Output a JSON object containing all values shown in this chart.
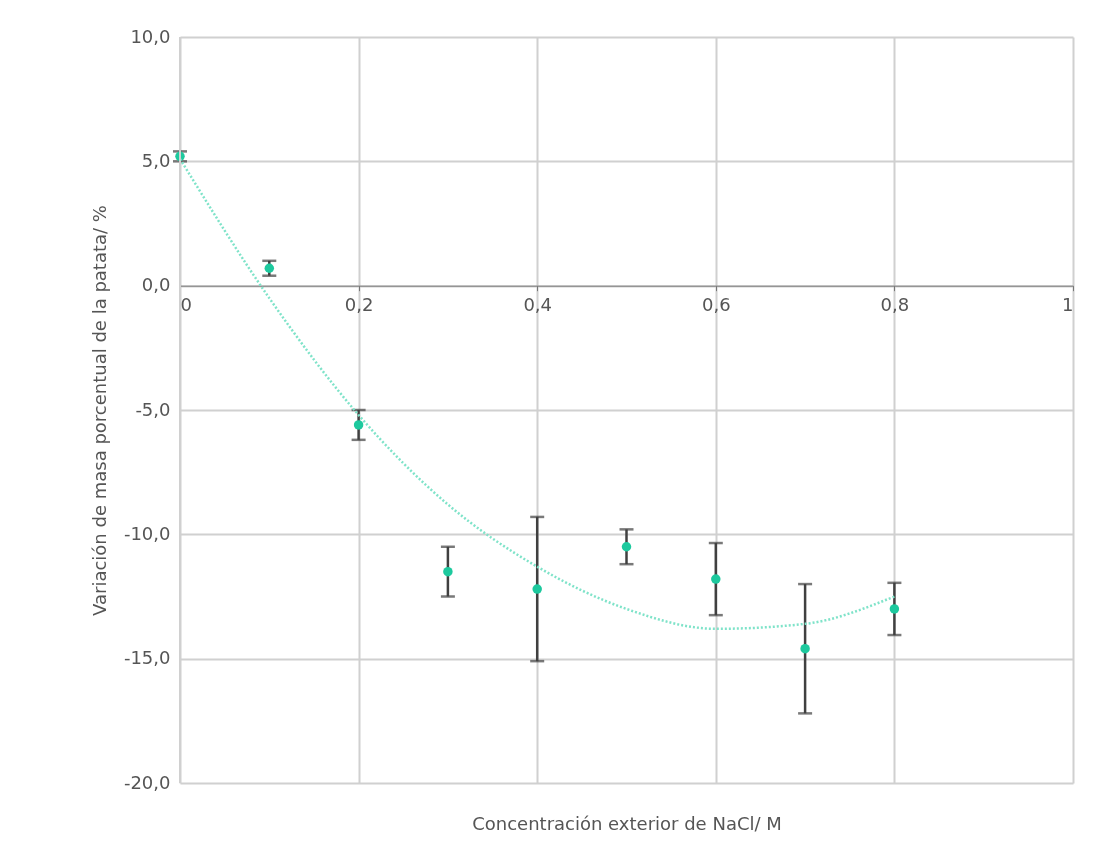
{
  "chart_data": {
    "type": "scatter",
    "xlabel": "Concentración exterior de NaCl/ M",
    "ylabel": "Variación de masa porcentual de la patata/ %",
    "xlim": [
      0,
      1
    ],
    "xticks": [
      0,
      {
        "value": 0.2,
        "label": "0,2"
      },
      {
        "value": 0.4,
        "label": "0,4"
      },
      {
        "value": 0.6,
        "label": "0,6"
      },
      {
        "value": 0.8,
        "label": "0,8"
      },
      1
    ],
    "ylim": [
      -20,
      10
    ],
    "yticks": [
      {
        "value": -20,
        "label": "-20,0"
      },
      {
        "value": -15,
        "label": "-15,0"
      },
      {
        "value": -10,
        "label": "-10,0"
      },
      {
        "value": -5,
        "label": "-5,0"
      },
      {
        "value": 0,
        "label": "0,0"
      },
      {
        "value": 5,
        "label": "5,0"
      },
      {
        "value": 10,
        "label": "10,0"
      }
    ],
    "grid": true,
    "series": [
      {
        "color": "#1dc99e",
        "marker": "circle",
        "x": [
          0,
          0.1,
          0.2,
          0.3,
          0.4,
          0.5,
          0.6,
          0.7,
          0.8
        ],
        "values": [
          5.2,
          0.7,
          -5.6,
          -11.5,
          -12.2,
          -10.5,
          -11.8,
          -14.6,
          -13.0
        ],
        "errors": [
          0.2,
          0.3,
          0.6,
          1.0,
          2.9,
          0.7,
          1.45,
          2.6,
          1.05
        ]
      },
      {
        "type": "line",
        "color": "#7fe3c9",
        "line_style": "dotted",
        "marker": "none",
        "x": [
          0,
          0.1,
          0.2,
          0.3,
          0.4,
          0.5,
          0.6,
          0.7,
          0.8
        ],
        "values": [
          5.1,
          -0.5,
          -5.2,
          -8.8,
          -11.3,
          -13.0,
          -13.8,
          -13.6,
          -12.5
        ]
      }
    ]
  }
}
